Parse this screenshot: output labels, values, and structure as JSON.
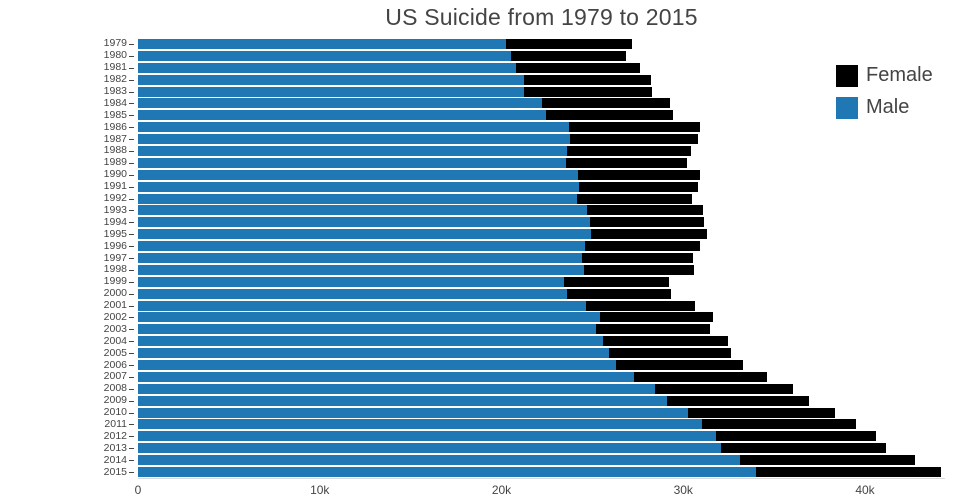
{
  "title": "US Suicide from 1979 to 2015",
  "legend": {
    "items": [
      {
        "label": "Female",
        "color": "#000000"
      },
      {
        "label": "Male",
        "color": "#1f77b4"
      }
    ]
  },
  "chart_data": {
    "type": "bar",
    "orientation": "horizontal",
    "stacked": true,
    "title": "US Suicide from 1979 to 2015",
    "xlabel": "",
    "ylabel": "",
    "xlim": [
      0,
      44400
    ],
    "grid": false,
    "legend_position": "right",
    "xticks": [
      {
        "value": 0,
        "label": "0"
      },
      {
        "value": 10000,
        "label": "10k"
      },
      {
        "value": 20000,
        "label": "20k"
      },
      {
        "value": 30000,
        "label": "30k"
      },
      {
        "value": 40000,
        "label": "40k"
      }
    ],
    "categories": [
      1979,
      1980,
      1981,
      1982,
      1983,
      1984,
      1985,
      1986,
      1987,
      1988,
      1989,
      1990,
      1991,
      1992,
      1993,
      1994,
      1995,
      1996,
      1997,
      1998,
      1999,
      2000,
      2001,
      2002,
      2003,
      2004,
      2005,
      2006,
      2007,
      2008,
      2009,
      2010,
      2011,
      2012,
      2013,
      2014,
      2015
    ],
    "series": [
      {
        "name": "Male",
        "color": "#1f77b4",
        "values": [
          20256,
          20505,
          20792,
          21228,
          21247,
          22203,
          22459,
          23714,
          23748,
          23587,
          23553,
          24226,
          24246,
          24143,
          24679,
          24855,
          24911,
          24580,
          24410,
          24538,
          23458,
          23618,
          24672,
          25409,
          25203,
          25566,
          25907,
          26308,
          27269,
          28450,
          29089,
          30277,
          31003,
          31780,
          32055,
          33113,
          33994
        ]
      },
      {
        "name": "Female",
        "color": "#000000",
        "values": [
          6950,
          6364,
          6804,
          7014,
          7048,
          7083,
          6994,
          7190,
          7048,
          6820,
          6679,
          6680,
          6564,
          6341,
          6423,
          6287,
          6373,
          6323,
          6125,
          6037,
          5741,
          5732,
          5950,
          6246,
          6281,
          6873,
          6730,
          6992,
          7329,
          7585,
          7820,
          8087,
          8515,
          8820,
          9094,
          9660,
          10199
        ]
      }
    ]
  }
}
